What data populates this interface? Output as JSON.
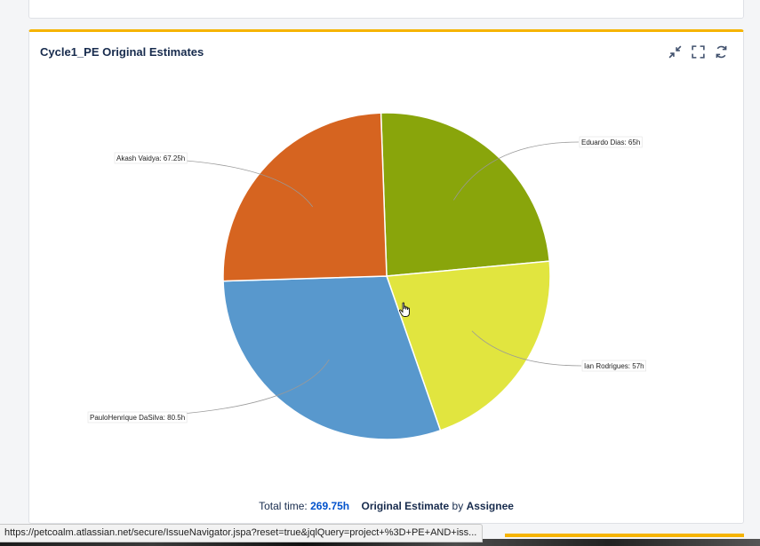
{
  "gadget": {
    "title": "Cycle1_PE Original Estimates",
    "tools": [
      {
        "name": "minimize-icon"
      },
      {
        "name": "maximize-icon"
      },
      {
        "name": "refresh-icon"
      }
    ]
  },
  "chart_data": {
    "type": "pie",
    "slices": [
      {
        "label": "Eduardo Dias: 65h",
        "name": "Eduardo Dias",
        "value": 65,
        "color": "#89a50b"
      },
      {
        "label": "Ian Rodrigues: 57h",
        "name": "Ian Rodrigues",
        "value": 57,
        "color": "#e1e53f"
      },
      {
        "label": "PauloHenrique DaSilva: 80.5h",
        "name": "PauloHenrique DaSilva",
        "value": 80.5,
        "color": "#5898cd"
      },
      {
        "label": "Akash Vaidya: 67.25h",
        "name": "Akash Vaidya",
        "value": 67.25,
        "color": "#d66420"
      }
    ]
  },
  "footer": {
    "total_prefix": "Total time:",
    "total_value": "269.75h",
    "field": "Original Estimate",
    "by": "by",
    "group": "Assignee"
  },
  "status_url": "https://petcoalm.atlassian.net/secure/IssueNavigator.jspa?reset=true&jqlQuery=project+%3D+PE+AND+iss..."
}
